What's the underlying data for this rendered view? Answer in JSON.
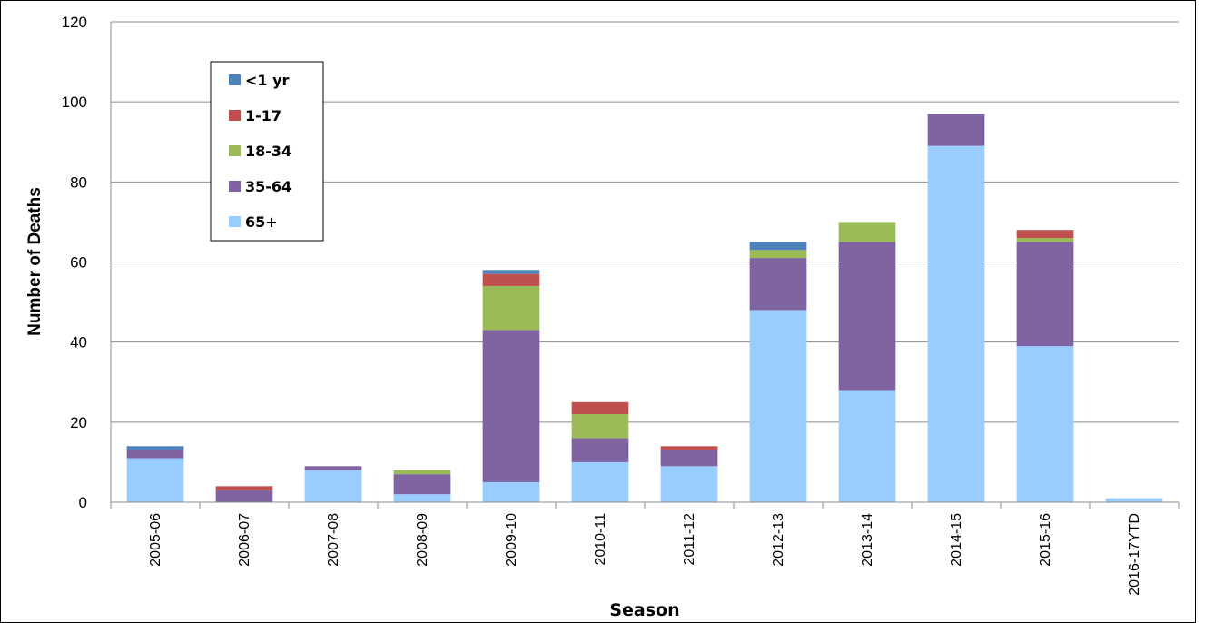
{
  "chart_data": {
    "type": "bar",
    "stacked": true,
    "categories": [
      "2005-06",
      "2006-07",
      "2007-08",
      "2008-09",
      "2009-10",
      "2010-11",
      "2011-12",
      "2012-13",
      "2013-14",
      "2014-15",
      "2015-16",
      "2016-17YTD"
    ],
    "series": [
      {
        "name": "65+",
        "color": "#99ccff",
        "values": [
          11,
          0,
          8,
          2,
          5,
          10,
          9,
          48,
          28,
          89,
          39,
          1
        ]
      },
      {
        "name": "35-64",
        "color": "#8064a2",
        "values": [
          2,
          3,
          1,
          5,
          38,
          6,
          4,
          13,
          37,
          8,
          26,
          0
        ]
      },
      {
        "name": "18-34",
        "color": "#9bbb59",
        "values": [
          0,
          0,
          0,
          1,
          11,
          6,
          0,
          2,
          5,
          0,
          1,
          0
        ]
      },
      {
        "name": "1-17",
        "color": "#c0504d",
        "values": [
          0,
          1,
          0,
          0,
          3,
          3,
          1,
          0,
          0,
          0,
          2,
          0
        ]
      },
      {
        "name": "<1 yr",
        "color": "#4f81bd",
        "values": [
          1,
          0,
          0,
          0,
          1,
          0,
          0,
          2,
          0,
          0,
          0,
          0
        ]
      }
    ],
    "legend_order": [
      "<1 yr",
      "1-17",
      "18-34",
      "35-64",
      "65+"
    ],
    "legend_position": "top-left",
    "xlabel": "Season",
    "ylabel": "Number of Deaths",
    "ylim": [
      0,
      120
    ],
    "yticks": [
      0,
      20,
      40,
      60,
      80,
      100,
      120
    ],
    "grid": true
  }
}
